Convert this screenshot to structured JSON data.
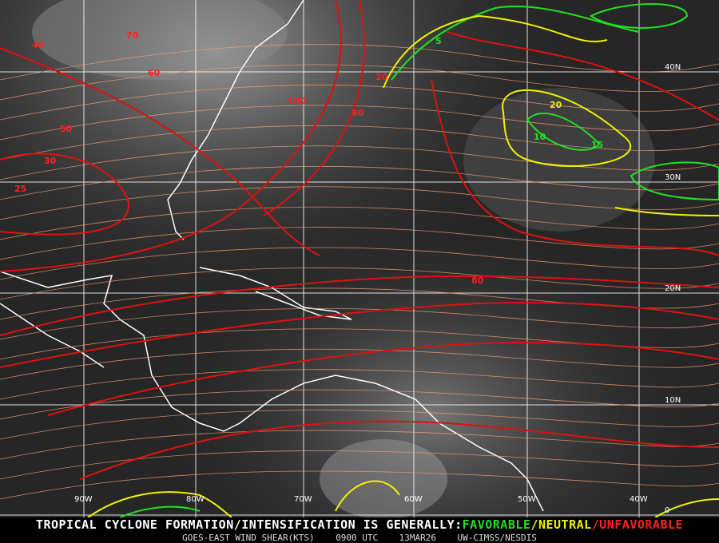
{
  "map": {
    "colors": {
      "favorable": "#22e022",
      "neutral": "#f0f000",
      "unfavorable": "#ff2020",
      "streamline": "#f4a070",
      "coast": "#ffffff",
      "grid": "#ffffff"
    },
    "longitude_labels": [
      "90W",
      "80W",
      "70W",
      "60W",
      "50W",
      "40W"
    ],
    "latitude_labels": [
      "40N",
      "30N",
      "20N",
      "10N",
      "0"
    ],
    "contour_labels": [
      {
        "value": "40",
        "level": "unfavorable"
      },
      {
        "value": "70",
        "level": "unfavorable"
      },
      {
        "value": "20",
        "level": "unfavorable"
      },
      {
        "value": "60",
        "level": "unfavorable"
      },
      {
        "value": "100",
        "level": "unfavorable"
      },
      {
        "value": "90",
        "level": "unfavorable"
      },
      {
        "value": "50",
        "level": "unfavorable"
      },
      {
        "value": "30",
        "level": "unfavorable"
      },
      {
        "value": "25",
        "level": "unfavorable"
      },
      {
        "value": "80",
        "level": "unfavorable"
      },
      {
        "value": "5",
        "level": "favorable"
      },
      {
        "value": "10",
        "level": "favorable"
      },
      {
        "value": "15",
        "level": "favorable"
      },
      {
        "value": "20",
        "level": "neutral"
      }
    ]
  },
  "legend": {
    "prefix": "TROPICAL CYCLONE FORMATION/INTENSIFICATION IS GENERALLY:",
    "favorable": "FAVORABLE",
    "sep1": "/",
    "neutral": "NEUTRAL",
    "sep2": "/",
    "unfavorable": "UNFAVORABLE"
  },
  "caption": {
    "product": "GOES-EAST WIND SHEAR(KTS)",
    "time": "0900 UTC",
    "date": "13MAR26",
    "source": "UW-CIMSS/NESDIS"
  }
}
